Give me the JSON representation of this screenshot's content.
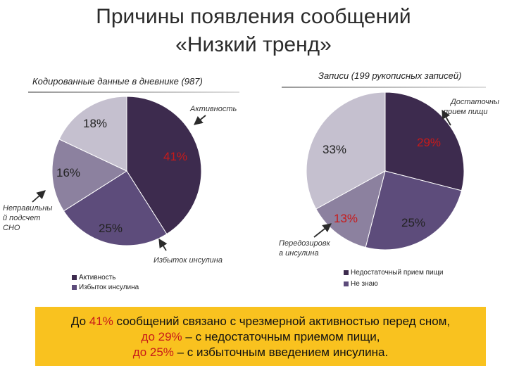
{
  "title_line1": "Причины появления сообщений",
  "title_line2": "«Низкий тренд»",
  "colors": {
    "dark": "#3d2b4e",
    "mid": "#5d4c7b",
    "light": "#8c819f",
    "lighter": "#c5c0cf",
    "accent_red": "#c81a1a",
    "box": "#f9c21f"
  },
  "chart_data": [
    {
      "type": "pie",
      "title": "Кодированные данные в дневнике (987)",
      "slices": [
        {
          "label": "Активность",
          "value": 41,
          "display": "41%",
          "color": "#3d2b4e"
        },
        {
          "label": "Избыток инсулина",
          "value": 25,
          "display": "25%",
          "color": "#5d4c7b"
        },
        {
          "label": "Неправильный подсчет СНО",
          "value": 16,
          "display": "16%",
          "color": "#8c819f"
        },
        {
          "label": "",
          "value": 18,
          "display": "18%",
          "color": "#c5c0cf"
        }
      ],
      "annotations": {
        "activity": "Активность",
        "excess": "Избыток инсулина",
        "wrong_line1": "Неправильны",
        "wrong_line2": "й подсчет",
        "wrong_line3": "СНО"
      },
      "legend": [
        "Активность",
        "Избыток инсулина"
      ]
    },
    {
      "type": "pie",
      "title": "Записи (199 рукописных записей)",
      "slices": [
        {
          "label": "Недостаточный прием пищи",
          "value": 29,
          "display": "29%",
          "color": "#3d2b4e"
        },
        {
          "label": "Не знаю",
          "value": 25,
          "display": "25%",
          "color": "#5d4c7b"
        },
        {
          "label": "Передозировка инсулина",
          "value": 13,
          "display": "13%",
          "color": "#8c819f"
        },
        {
          "label": "",
          "value": 33,
          "display": "33%",
          "color": "#c5c0cf"
        }
      ],
      "annotations": {
        "insufficient_line1": "Достаточны",
        "insufficient_line2": "прием пищи",
        "overdose_line1": "Передозировк",
        "overdose_line2": "а инсулина"
      },
      "legend": [
        "Недостаточный прием пищи",
        "Не знаю"
      ]
    }
  ],
  "summary": {
    "l1_pre": "До ",
    "l1_hl": "41%",
    "l1_post": " сообщений связано с чрезмерной активностью перед сном,",
    "l2_hl": "до 29%",
    "l2_post": " – с недостаточным приемом пищи,",
    "l3_hl": "до 25%",
    "l3_post": " –  с избыточным введением инсулина."
  }
}
